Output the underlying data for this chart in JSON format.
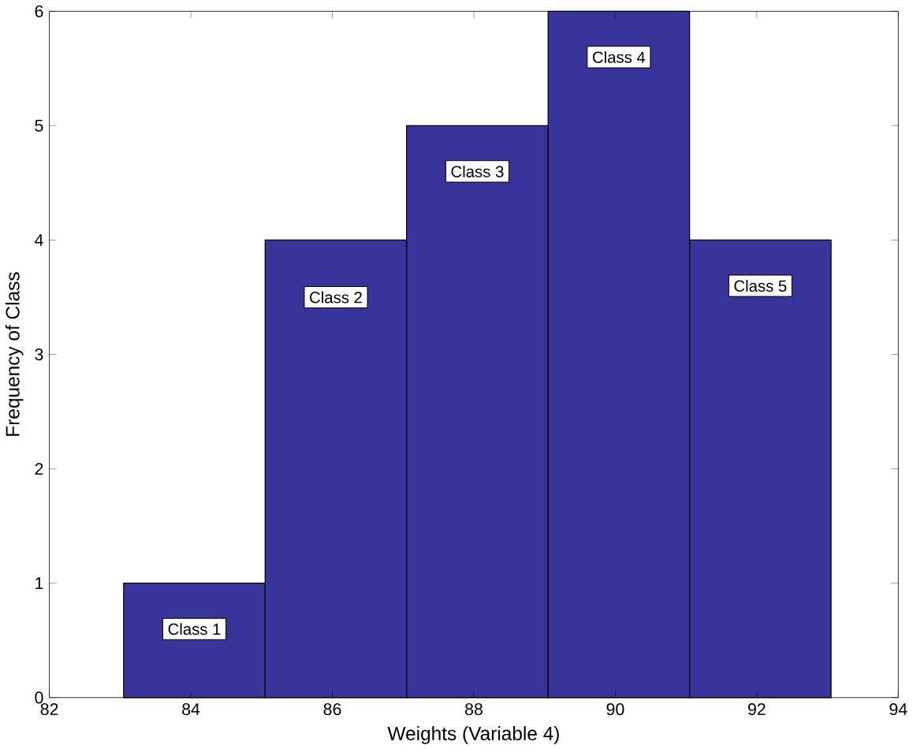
{
  "chart_data": {
    "type": "histogram",
    "xlabel": "Weights (Variable 4)",
    "ylabel": "Frequency of Class",
    "bins": [
      83.05,
      85.05,
      87.05,
      89.05,
      91.05,
      93.05
    ],
    "values": [
      1,
      4,
      5,
      6,
      4
    ],
    "color": "#3a3399",
    "xlim": [
      82,
      94
    ],
    "xticks": [
      82,
      84,
      86,
      88,
      90,
      92,
      94
    ],
    "ylim": [
      0,
      6
    ],
    "yticks": [
      0,
      1,
      2,
      3,
      4,
      5,
      6
    ],
    "grid": false,
    "annotations": [
      {
        "text": "Class 1",
        "x": 84.05,
        "y": 0.6
      },
      {
        "text": "Class 2",
        "x": 86.05,
        "y": 3.5
      },
      {
        "text": "Class 3",
        "x": 88.05,
        "y": 4.6
      },
      {
        "text": "Class 4",
        "x": 90.05,
        "y": 5.6
      },
      {
        "text": "Class 5",
        "x": 92.05,
        "y": 3.6
      }
    ]
  }
}
